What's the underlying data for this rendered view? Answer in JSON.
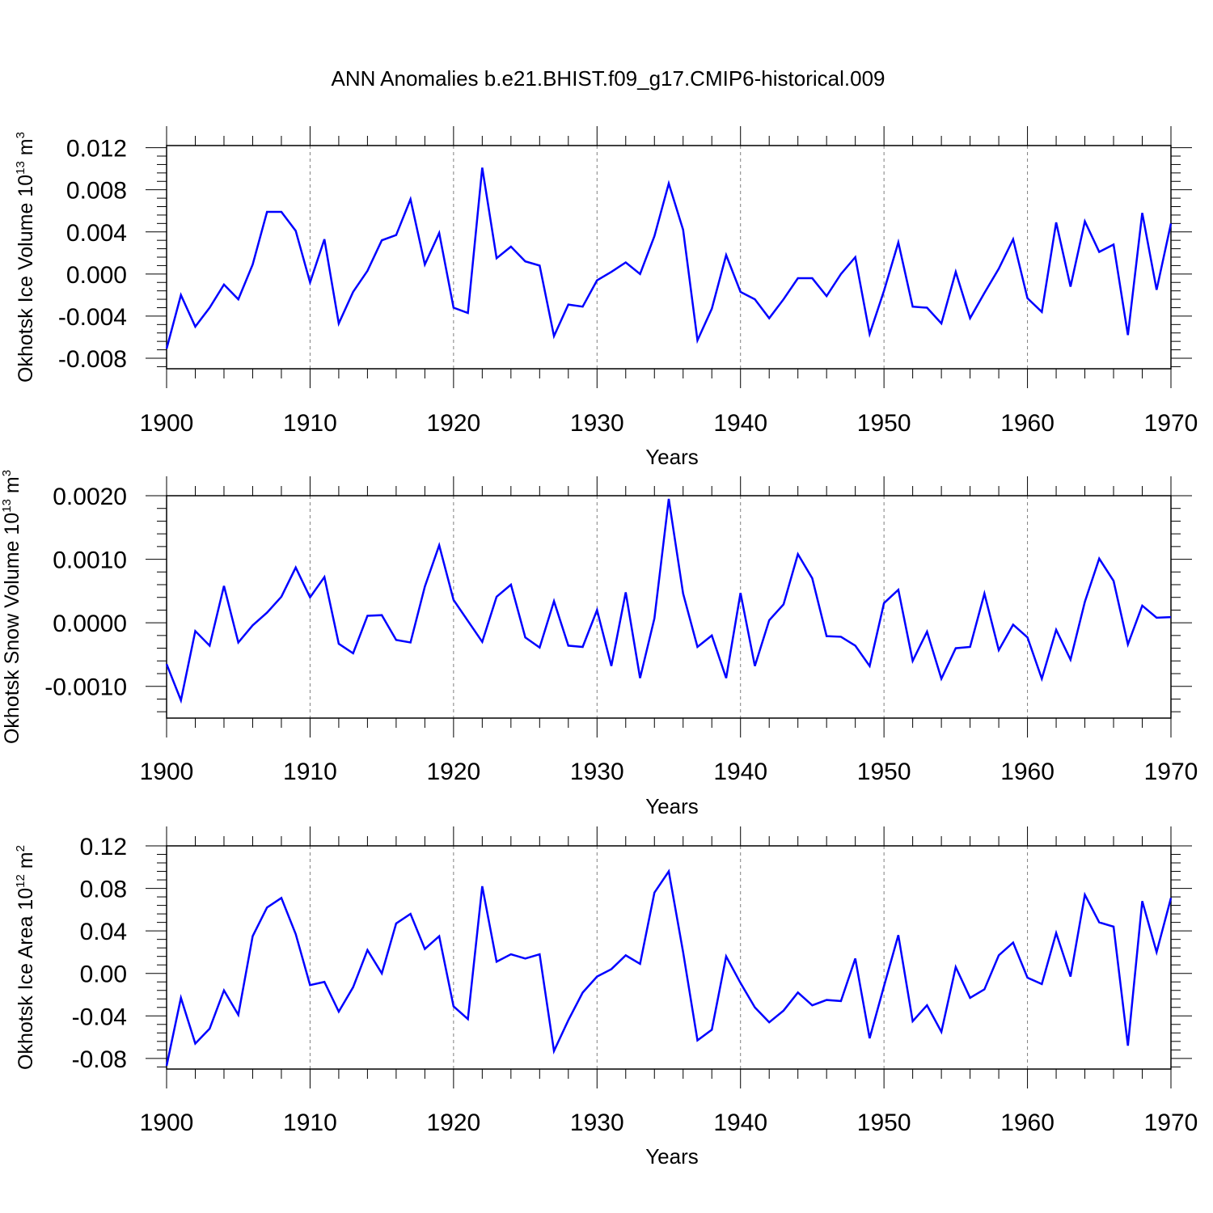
{
  "title": "ANN Anomalies b.e21.BHIST.f09_g17.CMIP6-historical.009",
  "colors": {
    "series": "#0000ff",
    "axis": "#000000",
    "grid": "#7f7f7f"
  },
  "chart_data": [
    {
      "type": "line",
      "title": "ANN Anomalies b.e21.BHIST.f09_g17.CMIP6-historical.009",
      "xlabel": "Years",
      "ylabel": {
        "prefix": "Okhotsk Ice Volume 10",
        "exponent": "13",
        "unit": " m",
        "unit_exponent": "3"
      },
      "xlim": [
        1900,
        1970
      ],
      "ylim": [
        -0.009,
        0.0122
      ],
      "xticks": [
        1900,
        1910,
        1920,
        1930,
        1940,
        1950,
        1960,
        1970
      ],
      "xtick_labels": [
        "1900",
        "1910",
        "1920",
        "1930",
        "1940",
        "1950",
        "1960",
        "1970"
      ],
      "yticks": [
        -0.008,
        -0.004,
        0.0,
        0.004,
        0.008,
        0.012
      ],
      "ytick_labels": [
        "-0.008",
        "-0.004",
        "0.000",
        "0.004",
        "0.008",
        "0.012"
      ],
      "grid": "vertical dashed at decades",
      "series": [
        {
          "name": "Okhotsk Ice Volume",
          "x": [
            1900,
            1901,
            1902,
            1903,
            1904,
            1905,
            1906,
            1907,
            1908,
            1909,
            1910,
            1911,
            1912,
            1913,
            1914,
            1915,
            1916,
            1917,
            1918,
            1919,
            1920,
            1921,
            1922,
            1923,
            1924,
            1925,
            1926,
            1927,
            1928,
            1929,
            1930,
            1931,
            1932,
            1933,
            1934,
            1935,
            1936,
            1937,
            1938,
            1939,
            1940,
            1941,
            1942,
            1943,
            1944,
            1945,
            1946,
            1947,
            1948,
            1949,
            1950,
            1951,
            1952,
            1953,
            1954,
            1955,
            1956,
            1957,
            1958,
            1959,
            1960,
            1961,
            1962,
            1963,
            1964,
            1965,
            1966,
            1967,
            1968,
            1969,
            1970
          ],
          "values": [
            -0.0071,
            -0.002,
            -0.005,
            -0.0032,
            -0.001,
            -0.0024,
            0.0009,
            0.0059,
            0.0059,
            0.0041,
            -0.0008,
            0.0033,
            -0.0047,
            -0.0017,
            0.0003,
            0.0032,
            0.0037,
            0.0071,
            0.0009,
            0.0039,
            -0.0032,
            -0.0037,
            0.0101,
            0.0015,
            0.0026,
            0.0012,
            0.0008,
            -0.0059,
            -0.0029,
            -0.0031,
            -0.0006,
            0.0002,
            0.0011,
            0.0,
            0.0036,
            0.0086,
            0.0042,
            -0.0063,
            -0.0033,
            0.0018,
            -0.0017,
            -0.0024,
            -0.0042,
            -0.0024,
            -0.0004,
            -0.0004,
            -0.0021,
            0.0,
            0.0016,
            -0.0057,
            -0.0016,
            0.003,
            -0.0031,
            -0.0032,
            -0.0047,
            0.0002,
            -0.0042,
            -0.0018,
            0.0005,
            0.0033,
            -0.0023,
            -0.0036,
            0.0049,
            -0.0012,
            0.005,
            0.0021,
            0.0028,
            -0.0058,
            0.0058,
            -0.0015,
            0.0048
          ]
        }
      ]
    },
    {
      "type": "line",
      "xlabel": "Years",
      "ylabel": {
        "prefix": "Okhotsk Snow Volume 10",
        "exponent": "13",
        "unit": " m",
        "unit_exponent": "3"
      },
      "xlim": [
        1900,
        1970
      ],
      "ylim": [
        -0.0015,
        0.002
      ],
      "xticks": [
        1900,
        1910,
        1920,
        1930,
        1940,
        1950,
        1960,
        1970
      ],
      "xtick_labels": [
        "1900",
        "1910",
        "1920",
        "1930",
        "1940",
        "1950",
        "1960",
        "1970"
      ],
      "yticks": [
        -0.001,
        0.0,
        0.001,
        0.002
      ],
      "ytick_labels": [
        "-0.0010",
        "0.0000",
        "0.0010",
        "0.0020"
      ],
      "grid": "vertical dashed at decades",
      "series": [
        {
          "name": "Okhotsk Snow Volume",
          "x": [
            1900,
            1901,
            1902,
            1903,
            1904,
            1905,
            1906,
            1907,
            1908,
            1909,
            1910,
            1911,
            1912,
            1913,
            1914,
            1915,
            1916,
            1917,
            1918,
            1919,
            1920,
            1921,
            1922,
            1923,
            1924,
            1925,
            1926,
            1927,
            1928,
            1929,
            1930,
            1931,
            1932,
            1933,
            1934,
            1935,
            1936,
            1937,
            1938,
            1939,
            1940,
            1941,
            1942,
            1943,
            1944,
            1945,
            1946,
            1947,
            1948,
            1949,
            1950,
            1951,
            1952,
            1953,
            1954,
            1955,
            1956,
            1957,
            1958,
            1959,
            1960,
            1961,
            1962,
            1963,
            1964,
            1965,
            1966,
            1967,
            1968,
            1969,
            1970
          ],
          "values": [
            -0.00065,
            -0.00122,
            -0.00013,
            -0.00036,
            0.00058,
            -0.00031,
            -4e-05,
            0.00016,
            0.00041,
            0.00087,
            0.0004,
            0.00072,
            -0.00033,
            -0.00048,
            0.00011,
            0.00012,
            -0.00027,
            -0.00031,
            0.00057,
            0.00122,
            0.00036,
            3e-05,
            -0.0003,
            0.00041,
            0.0006,
            -0.00023,
            -0.00039,
            0.00034,
            -0.00036,
            -0.00038,
            0.0002,
            -0.00068,
            0.00048,
            -0.00087,
            7e-05,
            0.00195,
            0.00046,
            -0.00038,
            -0.0002,
            -0.00087,
            0.00047,
            -0.00068,
            4e-05,
            0.00029,
            0.00108,
            0.0007,
            -0.00021,
            -0.00022,
            -0.00036,
            -0.00068,
            0.00031,
            0.00052,
            -0.0006,
            -0.00014,
            -0.00088,
            -0.0004,
            -0.00038,
            0.00046,
            -0.00043,
            -3e-05,
            -0.00023,
            -0.00088,
            -0.00011,
            -0.00058,
            0.00033,
            0.00101,
            0.00066,
            -0.00034,
            0.00027,
            8e-05,
            9e-05
          ]
        }
      ]
    },
    {
      "type": "line",
      "xlabel": "Years",
      "ylabel": {
        "prefix": "Okhotsk Ice Area 10",
        "exponent": "12",
        "unit": " m",
        "unit_exponent": "2"
      },
      "xlim": [
        1900,
        1970
      ],
      "ylim": [
        -0.09,
        0.12
      ],
      "xticks": [
        1900,
        1910,
        1920,
        1930,
        1940,
        1950,
        1960,
        1970
      ],
      "xtick_labels": [
        "1900",
        "1910",
        "1920",
        "1930",
        "1940",
        "1950",
        "1960",
        "1970"
      ],
      "yticks": [
        -0.08,
        -0.04,
        0.0,
        0.04,
        0.08,
        0.12
      ],
      "ytick_labels": [
        "-0.08",
        "-0.04",
        "0.00",
        "0.04",
        "0.08",
        "0.12"
      ],
      "grid": "vertical dashed at decades",
      "series": [
        {
          "name": "Okhotsk Ice Area",
          "x": [
            1900,
            1901,
            1902,
            1903,
            1904,
            1905,
            1906,
            1907,
            1908,
            1909,
            1910,
            1911,
            1912,
            1913,
            1914,
            1915,
            1916,
            1917,
            1918,
            1919,
            1920,
            1921,
            1922,
            1923,
            1924,
            1925,
            1926,
            1927,
            1928,
            1929,
            1930,
            1931,
            1932,
            1933,
            1934,
            1935,
            1936,
            1937,
            1938,
            1939,
            1940,
            1941,
            1942,
            1943,
            1944,
            1945,
            1946,
            1947,
            1948,
            1949,
            1950,
            1951,
            1952,
            1953,
            1954,
            1955,
            1956,
            1957,
            1958,
            1959,
            1960,
            1961,
            1962,
            1963,
            1964,
            1965,
            1966,
            1967,
            1968,
            1969,
            1970
          ],
          "values": [
            -0.087,
            -0.023,
            -0.066,
            -0.052,
            -0.016,
            -0.039,
            0.035,
            0.062,
            0.071,
            0.037,
            -0.011,
            -0.008,
            -0.036,
            -0.013,
            0.022,
            0.0,
            0.047,
            0.056,
            0.023,
            0.035,
            -0.031,
            -0.043,
            0.082,
            0.011,
            0.018,
            0.014,
            0.018,
            -0.073,
            -0.044,
            -0.018,
            -0.003,
            0.004,
            0.017,
            0.009,
            0.076,
            0.096,
            0.02,
            -0.063,
            -0.053,
            0.016,
            -0.009,
            -0.032,
            -0.046,
            -0.035,
            -0.018,
            -0.03,
            -0.025,
            -0.026,
            0.014,
            -0.061,
            -0.012,
            0.036,
            -0.045,
            -0.03,
            -0.055,
            0.006,
            -0.023,
            -0.015,
            0.017,
            0.029,
            -0.004,
            -0.01,
            0.038,
            -0.003,
            0.074,
            0.048,
            0.044,
            -0.068,
            0.068,
            0.02,
            0.071
          ]
        }
      ]
    }
  ]
}
